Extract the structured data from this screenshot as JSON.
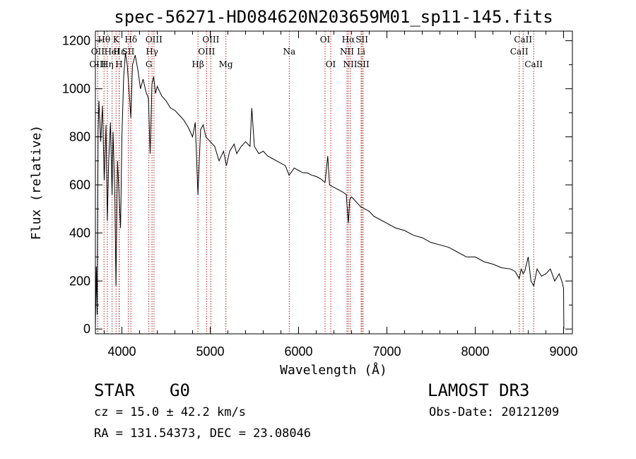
{
  "chart_data": {
    "type": "line",
    "title": "spec-56271-HD084620N203659M01_sp11-145.fits",
    "xlabel": "Wavelength (Å)",
    "ylabel": "Flux (relative)",
    "xlim": [
      3700,
      9100
    ],
    "ylim": [
      -20,
      1240
    ],
    "x_ticks": [
      4000,
      5000,
      6000,
      7000,
      8000,
      9000
    ],
    "x_tick_labels": [
      "4000",
      "5000",
      "6000",
      "7000",
      "8000",
      "9000"
    ],
    "y_ticks": [
      0,
      200,
      400,
      600,
      800,
      1000,
      1200
    ],
    "y_tick_labels": [
      "0",
      "200",
      "400",
      "600",
      "800",
      "1000",
      "1200"
    ],
    "series": [
      {
        "name": "spectrum",
        "x": [
          3700,
          3710,
          3720,
          3730,
          3740,
          3760,
          3780,
          3800,
          3820,
          3835,
          3850,
          3870,
          3889,
          3900,
          3920,
          3933,
          3950,
          3968,
          3985,
          4000,
          4020,
          4040,
          4060,
          4080,
          4101,
          4120,
          4150,
          4180,
          4210,
          4240,
          4270,
          4300,
          4320,
          4340,
          4360,
          4380,
          4400,
          4450,
          4500,
          4550,
          4600,
          4650,
          4700,
          4750,
          4800,
          4830,
          4861,
          4890,
          4920,
          4950,
          5000,
          5050,
          5100,
          5150,
          5183,
          5220,
          5270,
          5300,
          5350,
          5400,
          5450,
          5470,
          5500,
          5550,
          5600,
          5650,
          5700,
          5750,
          5800,
          5850,
          5893,
          5950,
          6000,
          6050,
          6100,
          6150,
          6200,
          6250,
          6300,
          6330,
          6350,
          6400,
          6450,
          6500,
          6540,
          6563,
          6580,
          6600,
          6650,
          6700,
          6750,
          6800,
          6850,
          6900,
          7000,
          7100,
          7200,
          7300,
          7400,
          7500,
          7600,
          7700,
          7800,
          7900,
          8000,
          8100,
          8200,
          8300,
          8400,
          8450,
          8498,
          8520,
          8542,
          8560,
          8600,
          8630,
          8662,
          8700,
          8750,
          8800,
          8850,
          8900,
          8950,
          8980,
          9000,
          9003
        ],
        "y": [
          0,
          260,
          60,
          820,
          950,
          780,
          930,
          620,
          850,
          450,
          700,
          860,
          560,
          820,
          560,
          180,
          700,
          560,
          420,
          800,
          1050,
          1150,
          1100,
          1000,
          880,
          1100,
          1140,
          1080,
          1000,
          1040,
          990,
          960,
          730,
          1020,
          1050,
          980,
          1010,
          970,
          950,
          920,
          910,
          890,
          870,
          840,
          800,
          860,
          560,
          830,
          850,
          800,
          780,
          760,
          700,
          740,
          680,
          740,
          770,
          730,
          760,
          780,
          760,
          920,
          760,
          730,
          740,
          720,
          710,
          700,
          690,
          680,
          640,
          670,
          660,
          650,
          650,
          640,
          635,
          625,
          610,
          720,
          600,
          590,
          580,
          570,
          560,
          440,
          540,
          550,
          530,
          510,
          500,
          490,
          470,
          460,
          440,
          420,
          410,
          390,
          380,
          360,
          350,
          340,
          320,
          300,
          300,
          280,
          270,
          255,
          250,
          240,
          210,
          250,
          230,
          240,
          300,
          200,
          180,
          250,
          220,
          230,
          250,
          200,
          230,
          200,
          170,
          0
        ]
      }
    ],
    "line_markers": [
      {
        "label": "Hθ",
        "x": 3798,
        "row": 1
      },
      {
        "label": "OII",
        "x": 3727,
        "row": 2
      },
      {
        "label": "OIII",
        "x": 3727,
        "row": 3
      },
      {
        "label": "Hη",
        "x": 3835,
        "row": 3
      },
      {
        "label": "K",
        "x": 3934,
        "row": 1
      },
      {
        "label": "HeI",
        "x": 3889,
        "row": 2
      },
      {
        "label": "Hε",
        "x": 3970,
        "row": 2
      },
      {
        "label": "H",
        "x": 3968,
        "row": 3
      },
      {
        "label": "Hδ",
        "x": 4102,
        "row": 1
      },
      {
        "label": "SII",
        "x": 4072,
        "row": 2
      },
      {
        "label": "OIII",
        "x": 4363,
        "row": 1
      },
      {
        "label": "Hγ",
        "x": 4341,
        "row": 2
      },
      {
        "label": "G",
        "x": 4305,
        "row": 3
      },
      {
        "label": "OIII",
        "x": 5007,
        "row": 1
      },
      {
        "label": "OIII",
        "x": 4959,
        "row": 2
      },
      {
        "label": "Hβ",
        "x": 4861,
        "row": 3
      },
      {
        "label": "Mg",
        "x": 5177,
        "row": 3
      },
      {
        "label": "Na",
        "x": 5895,
        "row": 2
      },
      {
        "label": "OI",
        "x": 6300,
        "row": 1
      },
      {
        "label": "OI",
        "x": 6364,
        "row": 3
      },
      {
        "label": "Hα",
        "x": 6563,
        "row": 1
      },
      {
        "label": "NII",
        "x": 6548,
        "row": 2
      },
      {
        "label": "NII",
        "x": 6584,
        "row": 3
      },
      {
        "label": "SII",
        "x": 6717,
        "row": 1
      },
      {
        "label": "Li",
        "x": 6708,
        "row": 2
      },
      {
        "label": "SII",
        "x": 6731,
        "row": 3
      },
      {
        "label": "CaII",
        "x": 8542,
        "row": 1
      },
      {
        "label": "CaII",
        "x": 8498,
        "row": 2
      },
      {
        "label": "CaII",
        "x": 8662,
        "row": 3
      }
    ],
    "grid": false
  },
  "info": {
    "object_type": "STAR",
    "subclass": "G0",
    "survey": "LAMOST DR3",
    "velocity": "cz = 15.0 ± 42.2 km/s",
    "obs_date": "Obs-Date: 20121209",
    "coords": "RA = 131.54373, DEC =  23.08046"
  },
  "colors": {
    "spectrum": "#000000",
    "marker": "#b22222",
    "axis": "#000000"
  }
}
